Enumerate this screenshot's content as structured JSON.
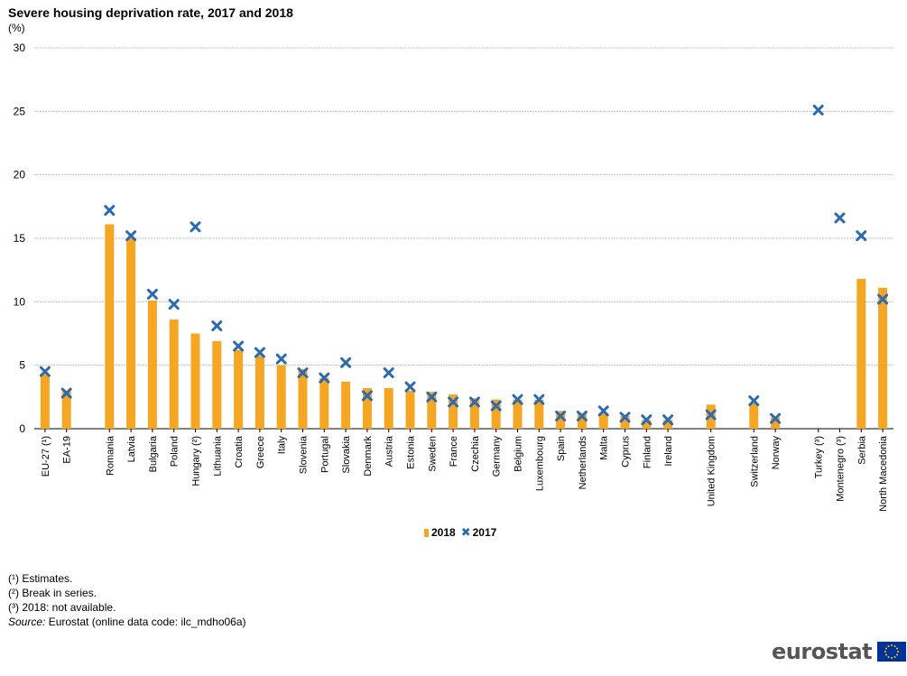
{
  "title": "Severe housing deprivation rate, 2017 and 2018",
  "unit": "(%)",
  "legend": {
    "s2018": "2018",
    "s2017": "2017"
  },
  "notes": [
    "(¹) Estimates.",
    "(²) Break in series.",
    "(³) 2018: not available."
  ],
  "source": {
    "label": "Source:",
    "text": "Eurostat (online data code: ilc_mdho06a)"
  },
  "logo": {
    "text": "eurostat",
    "flag_icon": "eu-flag-icon"
  },
  "colors": {
    "bar2018": "#F5A623",
    "marker2017": "#2E6AAF",
    "grid": "#BFBFBF"
  },
  "chart_data": {
    "type": "bar",
    "title": "Severe housing deprivation rate, 2017 and 2018",
    "ylabel": "(%)",
    "ylim": [
      0,
      30
    ],
    "yticks": [
      0,
      5,
      10,
      15,
      20,
      25,
      30
    ],
    "grid": true,
    "legend_position": "bottom",
    "categories": [
      "EU-27 (¹)",
      "EA-19",
      "",
      "Romania",
      "Latvia",
      "Bulgaria",
      "Poland",
      "Hungary (²)",
      "Lithuania",
      "Croatia",
      "Greece",
      "Italy",
      "Slovenia",
      "Portugal",
      "Slovakia",
      "Denmark",
      "Austria",
      "Estonia",
      "Sweden",
      "France",
      "Czechia",
      "Germany",
      "Belgium",
      "Luxembourg",
      "Spain",
      "Netherlands",
      "Malta",
      "Cyprus",
      "Finland",
      "Ireland",
      "",
      "United Kingdom",
      "",
      "Switzerland",
      "Norway",
      "",
      "Turkey (³)",
      "Montenegro (³)",
      "Serbia",
      "North Macedonia"
    ],
    "series": [
      {
        "name": "2018",
        "kind": "bar",
        "values": [
          4.3,
          3.0,
          null,
          16.1,
          15.0,
          10.1,
          8.6,
          7.5,
          6.9,
          6.2,
          5.8,
          5.0,
          4.7,
          4.0,
          3.7,
          3.2,
          3.2,
          3.0,
          2.9,
          2.7,
          2.4,
          2.3,
          2.3,
          2.3,
          1.4,
          1.2,
          1.2,
          1.0,
          0.7,
          0.7,
          null,
          1.9,
          null,
          2.0,
          0.9,
          null,
          null,
          null,
          11.8,
          11.1
        ]
      },
      {
        "name": "2017",
        "kind": "marker",
        "values": [
          4.5,
          2.8,
          null,
          17.2,
          15.2,
          10.6,
          9.8,
          15.9,
          8.1,
          6.5,
          6.0,
          5.5,
          4.4,
          4.0,
          5.2,
          2.6,
          4.4,
          3.3,
          2.5,
          2.1,
          2.1,
          1.8,
          2.3,
          2.3,
          1.0,
          1.0,
          1.4,
          0.9,
          0.7,
          0.7,
          null,
          1.1,
          null,
          2.2,
          0.8,
          null,
          25.1,
          16.6,
          15.2,
          10.2
        ]
      }
    ]
  }
}
